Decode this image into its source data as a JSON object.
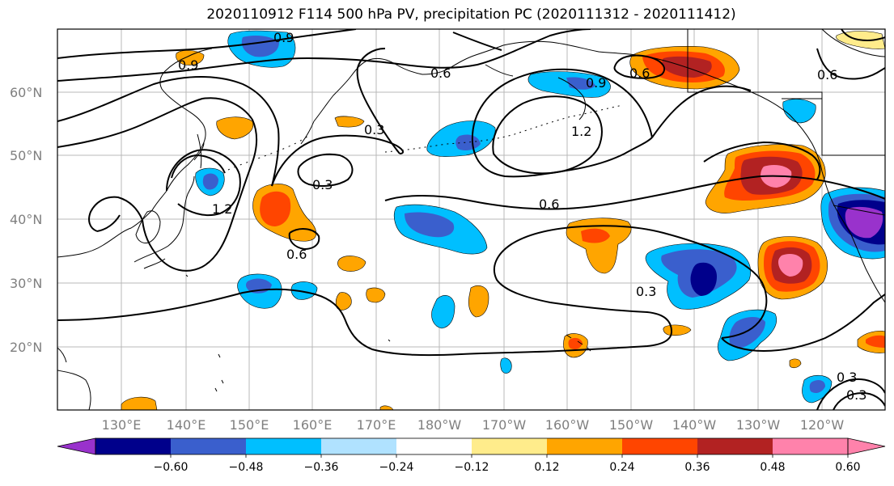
{
  "title": "2020110912 F114 500 hPa PV, precipitation PC (2020111312 - 2020111412)",
  "map": {
    "lat_ticks": [
      "60°N",
      "50°N",
      "40°N",
      "30°N",
      "20°N"
    ],
    "lon_ticks": [
      "130°E",
      "140°E",
      "150°E",
      "160°E",
      "170°E",
      "180°W",
      "170°W",
      "160°W",
      "150°W",
      "140°W",
      "130°W",
      "120°W"
    ],
    "pv_contour_labels": [
      "0.9",
      "0.9",
      "0.6",
      "0.9",
      "0.6",
      "0.3",
      "1.2",
      "0.3",
      "1.2",
      "0.6",
      "0.6",
      "0.3",
      "0.3",
      "0.3",
      "0.6"
    ]
  },
  "colorbar": {
    "colors": [
      "#9932cc",
      "#00008b",
      "#3a5fcd",
      "#00bfff",
      "#b0e2ff",
      "#ffffff",
      "#ffec8b",
      "#ffa500",
      "#ff4500",
      "#b22222",
      "#ff82ab",
      "#ff82ab"
    ],
    "labels": [
      "−0.60",
      "−0.48",
      "−0.36",
      "−0.24",
      "−0.12",
      "0.12",
      "0.24",
      "0.36",
      "0.48",
      "0.60"
    ]
  }
}
